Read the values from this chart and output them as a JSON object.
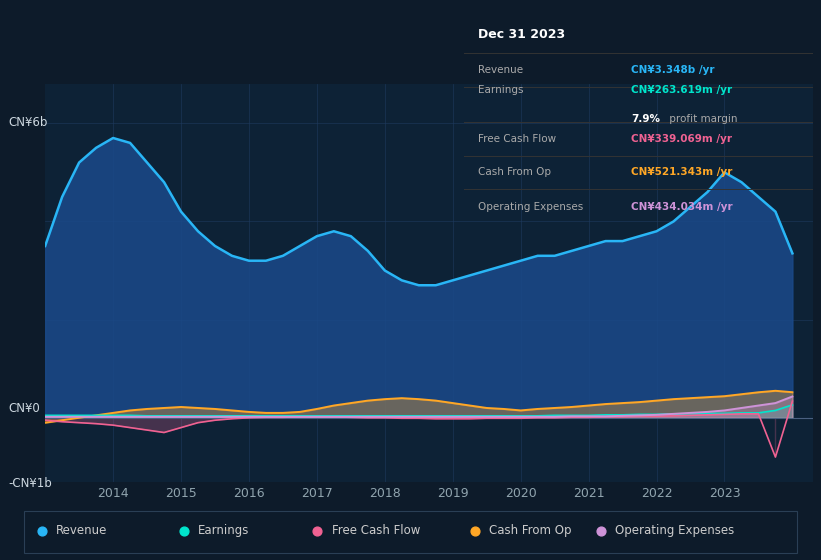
{
  "bg_color": "#0d1b2a",
  "plot_bg_color": "#0d2236",
  "ylabel_top": "CN¥6b",
  "ylabel_zero": "CN¥0",
  "ylabel_neg": "-CN¥1b",
  "years": [
    2013.0,
    2013.25,
    2013.5,
    2013.75,
    2014.0,
    2014.25,
    2014.5,
    2014.75,
    2015.0,
    2015.25,
    2015.5,
    2015.75,
    2016.0,
    2016.25,
    2016.5,
    2016.75,
    2017.0,
    2017.25,
    2017.5,
    2017.75,
    2018.0,
    2018.25,
    2018.5,
    2018.75,
    2019.0,
    2019.25,
    2019.5,
    2019.75,
    2020.0,
    2020.25,
    2020.5,
    2020.75,
    2021.0,
    2021.25,
    2021.5,
    2021.75,
    2022.0,
    2022.25,
    2022.5,
    2022.75,
    2023.0,
    2023.25,
    2023.5,
    2023.75,
    2024.0
  ],
  "revenue": [
    3.5,
    4.5,
    5.2,
    5.5,
    5.7,
    5.6,
    5.2,
    4.8,
    4.2,
    3.8,
    3.5,
    3.3,
    3.2,
    3.2,
    3.3,
    3.5,
    3.7,
    3.8,
    3.7,
    3.4,
    3.0,
    2.8,
    2.7,
    2.7,
    2.8,
    2.9,
    3.0,
    3.1,
    3.2,
    3.3,
    3.3,
    3.4,
    3.5,
    3.6,
    3.6,
    3.7,
    3.8,
    4.0,
    4.3,
    4.6,
    5.0,
    4.8,
    4.5,
    4.2,
    3.35
  ],
  "earnings": [
    0.05,
    0.05,
    0.05,
    0.05,
    0.05,
    0.05,
    0.04,
    0.04,
    0.04,
    0.04,
    0.04,
    0.04,
    0.04,
    0.04,
    0.04,
    0.04,
    0.04,
    0.04,
    0.04,
    0.04,
    0.04,
    0.04,
    0.04,
    0.04,
    0.04,
    0.04,
    0.04,
    0.04,
    0.04,
    0.04,
    0.05,
    0.05,
    0.05,
    0.06,
    0.06,
    0.07,
    0.07,
    0.08,
    0.08,
    0.09,
    0.09,
    0.1,
    0.1,
    0.15,
    0.264
  ],
  "free_cash_flow": [
    -0.05,
    -0.08,
    -0.1,
    -0.12,
    -0.15,
    -0.2,
    -0.25,
    -0.3,
    -0.2,
    -0.1,
    -0.05,
    -0.02,
    0.0,
    0.01,
    0.01,
    0.02,
    0.02,
    0.02,
    0.01,
    0.0,
    0.0,
    -0.01,
    -0.01,
    -0.02,
    -0.02,
    -0.02,
    -0.01,
    -0.01,
    -0.01,
    0.0,
    0.0,
    0.01,
    0.01,
    0.02,
    0.02,
    0.03,
    0.03,
    0.04,
    0.05,
    0.06,
    0.07,
    0.08,
    0.08,
    -0.8,
    0.339
  ],
  "cash_from_op": [
    -0.1,
    -0.05,
    0.0,
    0.05,
    0.1,
    0.15,
    0.18,
    0.2,
    0.22,
    0.2,
    0.18,
    0.15,
    0.12,
    0.1,
    0.1,
    0.12,
    0.18,
    0.25,
    0.3,
    0.35,
    0.38,
    0.4,
    0.38,
    0.35,
    0.3,
    0.25,
    0.2,
    0.18,
    0.15,
    0.18,
    0.2,
    0.22,
    0.25,
    0.28,
    0.3,
    0.32,
    0.35,
    0.38,
    0.4,
    0.42,
    0.44,
    0.48,
    0.52,
    0.55,
    0.521
  ],
  "operating_expenses": [
    0.02,
    0.02,
    0.02,
    0.02,
    0.02,
    0.02,
    0.02,
    0.02,
    0.02,
    0.02,
    0.02,
    0.02,
    0.02,
    0.02,
    0.02,
    0.02,
    0.02,
    0.02,
    0.02,
    0.02,
    0.02,
    0.02,
    0.02,
    0.02,
    0.02,
    0.02,
    0.02,
    0.02,
    0.02,
    0.02,
    0.02,
    0.03,
    0.03,
    0.03,
    0.04,
    0.05,
    0.06,
    0.08,
    0.1,
    0.12,
    0.15,
    0.2,
    0.25,
    0.3,
    0.434
  ],
  "revenue_color": "#29b6f6",
  "earnings_color": "#00e5cc",
  "free_cash_flow_color": "#f06292",
  "cash_from_op_color": "#ffa726",
  "operating_expenses_color": "#ce93d8",
  "revenue_fill_color": "#1a4a8a",
  "grid_color": "#1e3a5f",
  "text_color": "#90a4ae",
  "xlim": [
    2013.0,
    2024.3
  ],
  "ylim": [
    -1.3,
    6.8
  ],
  "xticks": [
    2014,
    2015,
    2016,
    2017,
    2018,
    2019,
    2020,
    2021,
    2022,
    2023
  ],
  "legend_items": [
    "Revenue",
    "Earnings",
    "Free Cash Flow",
    "Cash From Op",
    "Operating Expenses"
  ],
  "legend_colors": [
    "#29b6f6",
    "#00e5cc",
    "#f06292",
    "#ffa726",
    "#ce93d8"
  ],
  "info_rows": [
    {
      "label": "Revenue",
      "value": "CN¥3.348b /yr",
      "value_color": "#29b6f6"
    },
    {
      "label": "Earnings",
      "value": "CN¥263.619m /yr",
      "value_color": "#00e5cc"
    },
    {
      "label": "Free Cash Flow",
      "value": "CN¥339.069m /yr",
      "value_color": "#f06292"
    },
    {
      "label": "Cash From Op",
      "value": "CN¥521.343m /yr",
      "value_color": "#ffa726"
    },
    {
      "label": "Operating Expenses",
      "value": "CN¥434.034m /yr",
      "value_color": "#ce93d8"
    }
  ],
  "profit_margin_text": "7.9% profit margin",
  "info_title": "Dec 31 2023"
}
